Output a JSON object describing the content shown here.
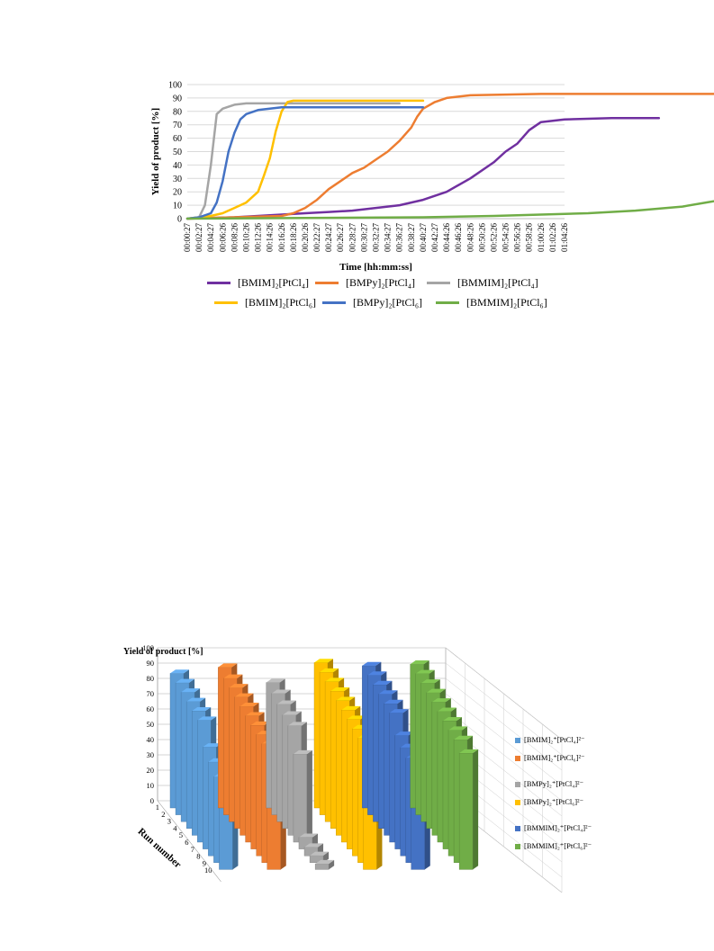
{
  "chart_data": [
    {
      "type": "line",
      "ylabel": "Yield of product [%]",
      "xlabel": "Time [hh:mm:ss]",
      "ylim": [
        0,
        100
      ],
      "yticks": [
        0,
        10,
        20,
        30,
        40,
        50,
        60,
        70,
        80,
        90,
        100
      ],
      "x_tick_labels": [
        "00:00:27",
        "00:02:27",
        "00:04:27",
        "00:06:26",
        "00:08:26",
        "00:10:26",
        "00:12:26",
        "00:14:26",
        "00:16:26",
        "00:18:26",
        "00:20:26",
        "00:22:27",
        "00:24:27",
        "00:26:27",
        "00:28:27",
        "00:30:27",
        "00:32:27",
        "00:34:27",
        "00:36:27",
        "00:38:27",
        "00:40:27",
        "00:42:27",
        "00:44:26",
        "00:46:26",
        "00:48:26",
        "00:50:26",
        "00:52:26",
        "00:54:26",
        "00:56:26",
        "00:58:26",
        "01:00:26",
        "01:02:26",
        "01:04:26"
      ],
      "grid": true,
      "legend_position": "bottom",
      "series": [
        {
          "name": "[BMIM]₂[PtCl₄]",
          "color": "#7030a0",
          "points": [
            [
              0,
              0
            ],
            [
              4,
              1
            ],
            [
              6,
              2
            ],
            [
              8,
              3
            ],
            [
              10,
              4
            ],
            [
              12,
              5
            ],
            [
              14,
              6
            ],
            [
              16,
              8
            ],
            [
              18,
              10
            ],
            [
              20,
              14
            ],
            [
              22,
              20
            ],
            [
              24,
              30
            ],
            [
              26,
              42
            ],
            [
              27,
              50
            ],
            [
              28,
              56
            ],
            [
              29,
              66
            ],
            [
              30,
              72
            ],
            [
              32,
              74
            ],
            [
              36,
              75
            ],
            [
              40,
              75
            ]
          ]
        },
        {
          "name": "[BMPy]₂[PtCl₄]",
          "color": "#ed7d31",
          "points": [
            [
              0,
              0
            ],
            [
              4,
              1
            ],
            [
              8,
              2
            ],
            [
              9,
              4
            ],
            [
              10,
              8
            ],
            [
              11,
              14
            ],
            [
              12,
              22
            ],
            [
              13,
              28
            ],
            [
              14,
              34
            ],
            [
              15,
              38
            ],
            [
              16,
              44
            ],
            [
              17,
              50
            ],
            [
              18,
              58
            ],
            [
              19,
              68
            ],
            [
              19.5,
              76
            ],
            [
              20,
              82
            ],
            [
              21,
              87
            ],
            [
              22,
              90
            ],
            [
              23,
              91
            ],
            [
              24,
              92
            ],
            [
              30,
              93
            ],
            [
              40,
              93
            ],
            [
              46,
              93
            ]
          ]
        },
        {
          "name": "[BMMIM]₂[PtCl₄]",
          "color": "#a5a5a5",
          "points": [
            [
              0,
              0
            ],
            [
              1,
              1
            ],
            [
              1.5,
              10
            ],
            [
              2,
              40
            ],
            [
              2.5,
              78
            ],
            [
              3,
              82
            ],
            [
              4,
              85
            ],
            [
              5,
              86
            ],
            [
              8,
              86
            ],
            [
              18,
              86
            ]
          ]
        },
        {
          "name": "[BMIM]₂[PtCl₆]",
          "color": "#ffc000",
          "points": [
            [
              0,
              0
            ],
            [
              1,
              1
            ],
            [
              2,
              2
            ],
            [
              3,
              4
            ],
            [
              4,
              8
            ],
            [
              5,
              12
            ],
            [
              6,
              20
            ],
            [
              6.5,
              32
            ],
            [
              7,
              45
            ],
            [
              7.5,
              65
            ],
            [
              8,
              80
            ],
            [
              8.5,
              87
            ],
            [
              9,
              88
            ],
            [
              14,
              88
            ],
            [
              20,
              88
            ]
          ]
        },
        {
          "name": "[BMPy]₂[PtCl₆]",
          "color": "#4472c4",
          "points": [
            [
              0,
              0
            ],
            [
              1,
              1
            ],
            [
              2,
              4
            ],
            [
              2.5,
              12
            ],
            [
              3,
              28
            ],
            [
              3.5,
              50
            ],
            [
              4,
              64
            ],
            [
              4.5,
              74
            ],
            [
              5,
              78
            ],
            [
              6,
              81
            ],
            [
              7,
              82
            ],
            [
              8,
              83
            ],
            [
              12,
              83
            ],
            [
              20,
              83
            ]
          ]
        },
        {
          "name": "[BMMIM]₂[PtCl₆]",
          "color": "#70ad47",
          "points": [
            [
              0,
              0
            ],
            [
              20,
              1
            ],
            [
              26,
              2
            ],
            [
              30,
              3
            ],
            [
              34,
              4
            ],
            [
              38,
              6
            ],
            [
              42,
              9
            ],
            [
              44,
              12
            ],
            [
              46,
              15
            ],
            [
              48,
              18
            ],
            [
              50,
              22
            ],
            [
              52,
              28
            ],
            [
              53,
              34
            ],
            [
              53.5,
              40
            ],
            [
              54,
              52
            ],
            [
              54.5,
              62
            ],
            [
              55,
              68
            ],
            [
              56,
              74
            ],
            [
              57,
              78
            ],
            [
              58,
              80
            ],
            [
              60,
              81
            ],
            [
              61,
              81
            ]
          ]
        }
      ]
    },
    {
      "type": "bar3d",
      "zlabel": "Yield of product [%]",
      "ylabel": "Run number",
      "yticks": [
        0,
        10,
        20,
        30,
        40,
        50,
        60,
        70,
        80,
        90,
        100
      ],
      "runs": [
        1,
        2,
        3,
        4,
        5,
        6,
        7,
        8,
        9,
        10
      ],
      "legend_position": "right",
      "series": [
        {
          "name": "[BMIM]₂⁺[PtCl₄]²⁻",
          "color": "#5b9bd5",
          "values": [
            88,
            87,
            86,
            85,
            84,
            83,
            70,
            65,
            60,
            55
          ]
        },
        {
          "name": "[BMIM]₂⁺[PtCl₆]²⁻",
          "color": "#ed7d31",
          "values": [
            92,
            90,
            89,
            88,
            87,
            86,
            85,
            84,
            83,
            80
          ]
        },
        {
          "name": "[BMPy]₂⁺[PtCl₄]²⁻",
          "color": "#a5a5a5",
          "values": [
            82,
            80,
            78,
            76,
            74,
            60,
            8,
            6,
            5,
            4
          ]
        },
        {
          "name": "[BMPy]₂⁺[PtCl₆]²⁻",
          "color": "#ffc000",
          "values": [
            95,
            94,
            93,
            92,
            91,
            90,
            89,
            88,
            87,
            85
          ]
        },
        {
          "name": "[BMMIM]₂⁺[PtCl₄]²⁻",
          "color": "#4472c4",
          "values": [
            93,
            92,
            91,
            90,
            89,
            88,
            78,
            75,
            73,
            70
          ]
        },
        {
          "name": "[BMMIM]₂⁺[PtCl₆]²⁻",
          "color": "#70ad47",
          "values": [
            94,
            93,
            92,
            91,
            90,
            89,
            88,
            87,
            86,
            82
          ]
        }
      ]
    }
  ]
}
